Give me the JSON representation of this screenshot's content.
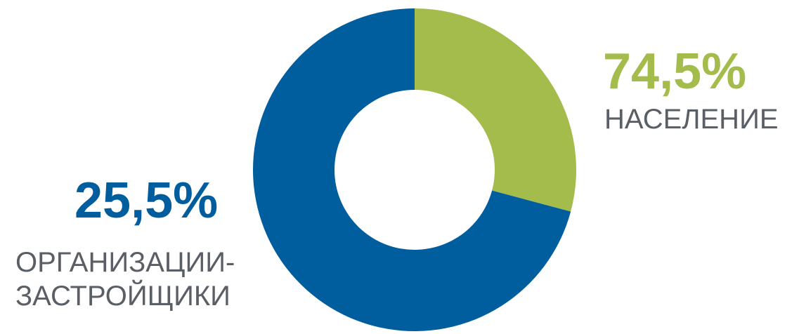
{
  "chart_data": {
    "type": "pie",
    "donut": true,
    "slices": [
      {
        "label_lines": [
          "НАСЕЛЕНИЕ"
        ],
        "percent_label": "74,5%",
        "value": 74.5,
        "color": "#a4bc4b"
      },
      {
        "label_lines": [
          "ОРГАНИЗАЦИИ-",
          "ЗАСТРОЙЩИКИ"
        ],
        "percent_label": "25,5%",
        "value": 25.5,
        "color": "#005e9e"
      }
    ],
    "label_color": "#5a5f66"
  }
}
